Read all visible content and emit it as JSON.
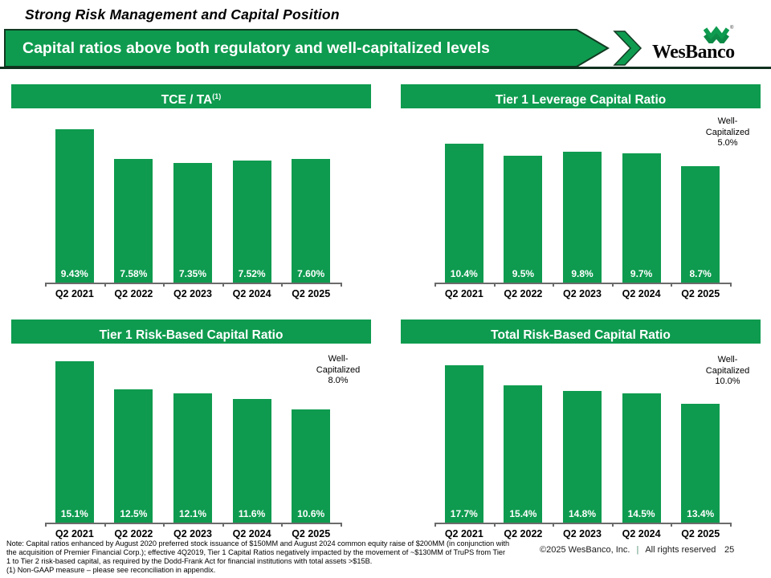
{
  "header": {
    "kicker": "Strong Risk Management and Capital Position",
    "banner_title": "Capital ratios above both regulatory and well-capitalized levels",
    "logo_text": "WesBanco",
    "logo_reg_mark": "®"
  },
  "colors": {
    "green": "#0e9b4f",
    "dark_green_outline": "#123a22",
    "rule": "#10301e",
    "axis_gray": "#6b6b6b"
  },
  "chart_data": [
    {
      "type": "bar",
      "title": "TCE / TA",
      "title_superscript": "(1)",
      "categories": [
        "Q2 2021",
        "Q2 2022",
        "Q2 2023",
        "Q2 2024",
        "Q2 2025"
      ],
      "values": [
        9.43,
        7.58,
        7.35,
        7.52,
        7.6
      ],
      "labels": [
        "9.43%",
        "7.58%",
        "7.35%",
        "7.52%",
        "7.60%"
      ],
      "ylim": [
        0,
        10
      ],
      "annotation": null
    },
    {
      "type": "bar",
      "title": "Tier 1 Leverage Capital Ratio",
      "title_superscript": "",
      "categories": [
        "Q2 2021",
        "Q2 2022",
        "Q2 2023",
        "Q2 2024",
        "Q2 2025"
      ],
      "values": [
        10.4,
        9.5,
        9.8,
        9.7,
        8.7
      ],
      "labels": [
        "10.4%",
        "9.5%",
        "9.8%",
        "9.7%",
        "8.7%"
      ],
      "ylim": [
        0,
        11
      ],
      "annotation": {
        "lines": [
          "Well-",
          "Capitalized",
          "5.0%"
        ]
      }
    },
    {
      "type": "bar",
      "title": "Tier 1 Risk-Based Capital Ratio",
      "title_superscript": "",
      "categories": [
        "Q2 2021",
        "Q2 2022",
        "Q2 2023",
        "Q2 2024",
        "Q2 2025"
      ],
      "values": [
        15.1,
        12.5,
        12.1,
        11.6,
        10.6
      ],
      "labels": [
        "15.1%",
        "12.5%",
        "12.1%",
        "11.6%",
        "10.6%"
      ],
      "ylim": [
        0,
        16
      ],
      "annotation": {
        "lines": [
          "Well-",
          "Capitalized",
          "8.0%"
        ]
      }
    },
    {
      "type": "bar",
      "title": "Total Risk-Based Capital Ratio",
      "title_superscript": "",
      "categories": [
        "Q2 2021",
        "Q2 2022",
        "Q2 2023",
        "Q2 2024",
        "Q2 2025"
      ],
      "values": [
        17.7,
        15.4,
        14.8,
        14.5,
        13.4
      ],
      "labels": [
        "17.7%",
        "15.4%",
        "14.8%",
        "14.5%",
        "13.4%"
      ],
      "ylim": [
        0,
        19
      ],
      "annotation": {
        "lines": [
          "Well-",
          "Capitalized",
          "10.0%"
        ]
      }
    }
  ],
  "footer": {
    "note_lines": [
      "Note: Capital ratios enhanced by August 2020 preferred stock issuance of $150MM and August 2024 common equity raise of $200MM (in conjunction with",
      "the acquisition of Premier Financial Corp.); effective 4Q2019, Tier 1 Capital Ratios negatively impacted by the movement of ~$130MM of TruPS from Tier",
      "1 to Tier 2 risk-based capital, as required by the Dodd-Frank Act for financial institutions with total assets >$15B.",
      "(1) Non-GAAP measure – please see reconciliation in appendix."
    ],
    "copyright": "©2025 WesBanco, Inc.",
    "separator": "|",
    "rights": "All rights reserved",
    "page_number": "25"
  }
}
